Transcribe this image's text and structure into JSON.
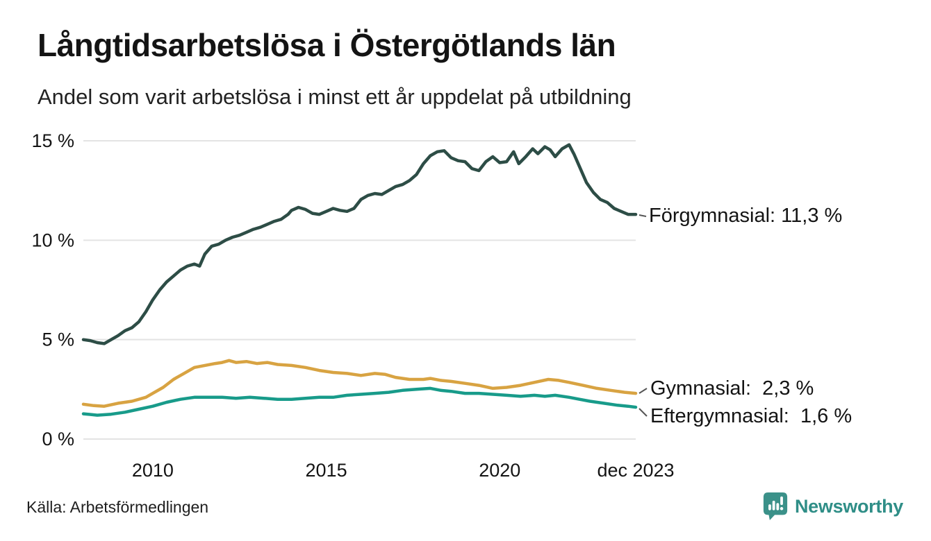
{
  "header": {
    "title": "Långtidsarbetslösa i Östergötlands län",
    "subtitle": "Andel som varit arbetslösa i minst ett år uppdelat på utbildning"
  },
  "footer": {
    "source": "Källa: Arbetsförmedlingen",
    "brand_name": "Newsworthy",
    "brand_color": "#2f8e87",
    "brand_icon": "newsworthy-speech-bubble-chart-icon",
    "brand_icon_color": "#3b9189"
  },
  "chart_data": {
    "type": "line",
    "title": "Långtidsarbetslösa i Östergötlands län",
    "subtitle": "Andel som varit arbetslösa i minst ett år uppdelat på utbildning",
    "xlabel": "",
    "ylabel": "",
    "grid": true,
    "grid_color": "#e3e3e3",
    "x_axis": {
      "range": [
        2008.0,
        2023.92
      ],
      "ticks": [
        {
          "label": "2010",
          "x": 2010
        },
        {
          "label": "2015",
          "x": 2015
        },
        {
          "label": "2020",
          "x": 2020
        },
        {
          "label": "dec 2023",
          "x": 2023.92
        }
      ]
    },
    "y_axis": {
      "range": [
        0,
        15.5
      ],
      "unit": "%",
      "ticks": [
        {
          "label": "0 %",
          "value": 0
        },
        {
          "label": "5 %",
          "value": 5
        },
        {
          "label": "10 %",
          "value": 10
        },
        {
          "label": "15 %",
          "value": 15
        }
      ]
    },
    "legend_position": "right-end-labels",
    "series": [
      {
        "id": "forgymnasial",
        "name": "Förgymnasial",
        "color": "#2d4d46",
        "end_value": 11.3,
        "end_label": "Förgymnasial: 11,3 %",
        "points": [
          [
            2008.0,
            5.0
          ],
          [
            2008.2,
            4.95
          ],
          [
            2008.4,
            4.85
          ],
          [
            2008.6,
            4.8
          ],
          [
            2008.8,
            5.0
          ],
          [
            2009.0,
            5.2
          ],
          [
            2009.2,
            5.45
          ],
          [
            2009.4,
            5.6
          ],
          [
            2009.6,
            5.9
          ],
          [
            2009.8,
            6.4
          ],
          [
            2010.0,
            7.0
          ],
          [
            2010.2,
            7.5
          ],
          [
            2010.4,
            7.9
          ],
          [
            2010.6,
            8.2
          ],
          [
            2010.8,
            8.5
          ],
          [
            2011.0,
            8.7
          ],
          [
            2011.2,
            8.8
          ],
          [
            2011.35,
            8.7
          ],
          [
            2011.5,
            9.3
          ],
          [
            2011.7,
            9.7
          ],
          [
            2011.9,
            9.8
          ],
          [
            2012.1,
            10.0
          ],
          [
            2012.3,
            10.15
          ],
          [
            2012.5,
            10.25
          ],
          [
            2012.7,
            10.4
          ],
          [
            2012.9,
            10.55
          ],
          [
            2013.1,
            10.65
          ],
          [
            2013.3,
            10.8
          ],
          [
            2013.5,
            10.95
          ],
          [
            2013.7,
            11.05
          ],
          [
            2013.9,
            11.3
          ],
          [
            2014.0,
            11.5
          ],
          [
            2014.2,
            11.65
          ],
          [
            2014.4,
            11.55
          ],
          [
            2014.6,
            11.35
          ],
          [
            2014.8,
            11.3
          ],
          [
            2015.0,
            11.45
          ],
          [
            2015.2,
            11.6
          ],
          [
            2015.4,
            11.5
          ],
          [
            2015.6,
            11.45
          ],
          [
            2015.8,
            11.6
          ],
          [
            2016.0,
            12.05
          ],
          [
            2016.2,
            12.25
          ],
          [
            2016.4,
            12.35
          ],
          [
            2016.6,
            12.3
          ],
          [
            2016.8,
            12.5
          ],
          [
            2017.0,
            12.7
          ],
          [
            2017.2,
            12.8
          ],
          [
            2017.4,
            13.0
          ],
          [
            2017.6,
            13.3
          ],
          [
            2017.8,
            13.85
          ],
          [
            2018.0,
            14.25
          ],
          [
            2018.2,
            14.45
          ],
          [
            2018.4,
            14.5
          ],
          [
            2018.6,
            14.15
          ],
          [
            2018.8,
            14.0
          ],
          [
            2019.0,
            13.95
          ],
          [
            2019.2,
            13.6
          ],
          [
            2019.4,
            13.5
          ],
          [
            2019.6,
            13.95
          ],
          [
            2019.8,
            14.2
          ],
          [
            2020.0,
            13.9
          ],
          [
            2020.2,
            13.95
          ],
          [
            2020.4,
            14.45
          ],
          [
            2020.55,
            13.85
          ],
          [
            2020.75,
            14.2
          ],
          [
            2020.95,
            14.6
          ],
          [
            2021.1,
            14.35
          ],
          [
            2021.3,
            14.7
          ],
          [
            2021.45,
            14.55
          ],
          [
            2021.6,
            14.2
          ],
          [
            2021.8,
            14.6
          ],
          [
            2022.0,
            14.8
          ],
          [
            2022.15,
            14.3
          ],
          [
            2022.3,
            13.7
          ],
          [
            2022.5,
            12.9
          ],
          [
            2022.7,
            12.4
          ],
          [
            2022.9,
            12.05
          ],
          [
            2023.1,
            11.9
          ],
          [
            2023.3,
            11.6
          ],
          [
            2023.5,
            11.45
          ],
          [
            2023.7,
            11.3
          ],
          [
            2023.92,
            11.3
          ]
        ]
      },
      {
        "id": "gymnasial",
        "name": "Gymnasial",
        "color": "#d8a342",
        "end_value": 2.3,
        "end_label": "Gymnasial:  2,3 %",
        "points": [
          [
            2008.0,
            1.75
          ],
          [
            2008.3,
            1.68
          ],
          [
            2008.6,
            1.65
          ],
          [
            2009.0,
            1.8
          ],
          [
            2009.4,
            1.9
          ],
          [
            2009.8,
            2.1
          ],
          [
            2010.0,
            2.3
          ],
          [
            2010.3,
            2.6
          ],
          [
            2010.6,
            3.0
          ],
          [
            2010.9,
            3.3
          ],
          [
            2011.2,
            3.6
          ],
          [
            2011.5,
            3.7
          ],
          [
            2011.8,
            3.8
          ],
          [
            2012.0,
            3.85
          ],
          [
            2012.2,
            3.95
          ],
          [
            2012.4,
            3.85
          ],
          [
            2012.7,
            3.9
          ],
          [
            2013.0,
            3.8
          ],
          [
            2013.3,
            3.85
          ],
          [
            2013.6,
            3.75
          ],
          [
            2014.0,
            3.7
          ],
          [
            2014.4,
            3.6
          ],
          [
            2014.8,
            3.45
          ],
          [
            2015.2,
            3.35
          ],
          [
            2015.6,
            3.3
          ],
          [
            2016.0,
            3.2
          ],
          [
            2016.4,
            3.3
          ],
          [
            2016.7,
            3.25
          ],
          [
            2017.0,
            3.1
          ],
          [
            2017.4,
            3.0
          ],
          [
            2017.8,
            3.0
          ],
          [
            2018.0,
            3.05
          ],
          [
            2018.3,
            2.95
          ],
          [
            2018.6,
            2.9
          ],
          [
            2019.0,
            2.8
          ],
          [
            2019.4,
            2.7
          ],
          [
            2019.8,
            2.55
          ],
          [
            2020.2,
            2.6
          ],
          [
            2020.6,
            2.7
          ],
          [
            2021.0,
            2.85
          ],
          [
            2021.4,
            3.0
          ],
          [
            2021.7,
            2.95
          ],
          [
            2022.0,
            2.85
          ],
          [
            2022.4,
            2.7
          ],
          [
            2022.8,
            2.55
          ],
          [
            2023.2,
            2.45
          ],
          [
            2023.6,
            2.35
          ],
          [
            2023.92,
            2.3
          ]
        ]
      },
      {
        "id": "eftergymnasial",
        "name": "Eftergymnasial",
        "color": "#189b8a",
        "end_value": 1.6,
        "end_label": "Eftergymnasial:  1,6 %",
        "points": [
          [
            2008.0,
            1.27
          ],
          [
            2008.4,
            1.2
          ],
          [
            2008.8,
            1.25
          ],
          [
            2009.2,
            1.35
          ],
          [
            2009.6,
            1.5
          ],
          [
            2010.0,
            1.65
          ],
          [
            2010.4,
            1.85
          ],
          [
            2010.8,
            2.0
          ],
          [
            2011.2,
            2.1
          ],
          [
            2011.6,
            2.1
          ],
          [
            2012.0,
            2.1
          ],
          [
            2012.4,
            2.05
          ],
          [
            2012.8,
            2.1
          ],
          [
            2013.2,
            2.05
          ],
          [
            2013.6,
            2.0
          ],
          [
            2014.0,
            2.0
          ],
          [
            2014.4,
            2.05
          ],
          [
            2014.8,
            2.1
          ],
          [
            2015.2,
            2.1
          ],
          [
            2015.6,
            2.2
          ],
          [
            2016.0,
            2.25
          ],
          [
            2016.4,
            2.3
          ],
          [
            2016.8,
            2.35
          ],
          [
            2017.2,
            2.45
          ],
          [
            2017.6,
            2.5
          ],
          [
            2018.0,
            2.55
          ],
          [
            2018.3,
            2.45
          ],
          [
            2018.6,
            2.4
          ],
          [
            2019.0,
            2.3
          ],
          [
            2019.4,
            2.3
          ],
          [
            2019.8,
            2.25
          ],
          [
            2020.2,
            2.2
          ],
          [
            2020.6,
            2.15
          ],
          [
            2021.0,
            2.2
          ],
          [
            2021.3,
            2.15
          ],
          [
            2021.6,
            2.2
          ],
          [
            2022.0,
            2.1
          ],
          [
            2022.3,
            2.0
          ],
          [
            2022.6,
            1.9
          ],
          [
            2023.0,
            1.8
          ],
          [
            2023.4,
            1.7
          ],
          [
            2023.7,
            1.65
          ],
          [
            2023.92,
            1.6
          ]
        ]
      }
    ]
  }
}
